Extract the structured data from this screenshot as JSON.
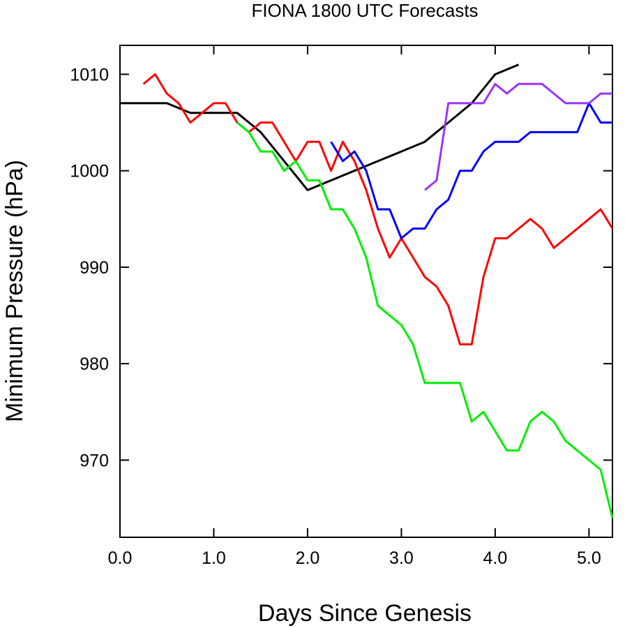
{
  "chart_data": {
    "type": "line",
    "title": "FIONA 1800 UTC Forecasts",
    "xlabel": "Days Since Genesis",
    "ylabel": "Minimum Pressure (hPa)",
    "xlim": [
      0,
      5.25
    ],
    "ylim": [
      962,
      1013
    ],
    "grid": false,
    "legend": "none",
    "x_ticks": [
      {
        "value": 0,
        "label": "0.0"
      },
      {
        "value": 1,
        "label": "1.0"
      },
      {
        "value": 2,
        "label": "2.0"
      },
      {
        "value": 3,
        "label": "3.0"
      },
      {
        "value": 4,
        "label": "4.0"
      },
      {
        "value": 5,
        "label": "5.0"
      }
    ],
    "y_ticks": [
      {
        "value": 970,
        "label": "970"
      },
      {
        "value": 980,
        "label": "980"
      },
      {
        "value": 990,
        "label": "990"
      },
      {
        "value": 1000,
        "label": "1000"
      },
      {
        "value": 1010,
        "label": "1010"
      }
    ],
    "series": [
      {
        "color": "#000000",
        "x": [
          0,
          0.5,
          0.75,
          1.0,
          1.25,
          1.5,
          2.0,
          2.25,
          2.5,
          2.75,
          3.0,
          3.25,
          3.5,
          3.75,
          4.0,
          4.25
        ],
        "y": [
          1007,
          1007,
          1006,
          1006,
          1006,
          1004,
          998,
          999,
          1000,
          1001,
          1002,
          1003,
          1005,
          1007,
          1010,
          1011
        ]
      },
      {
        "color": "#ff0000",
        "x": [
          0.25,
          0.375,
          0.5,
          0.625,
          0.75,
          0.875,
          1.0,
          1.125,
          1.25,
          1.375,
          1.5,
          1.625,
          1.75,
          1.875,
          2.0,
          2.125,
          2.25,
          2.375,
          2.5,
          2.625,
          2.75,
          2.875,
          3.0,
          3.125,
          3.25,
          3.375,
          3.5,
          3.625,
          3.75,
          3.875,
          4.0,
          4.125,
          4.25,
          4.375,
          4.5,
          4.625,
          4.75,
          4.875,
          5.0,
          5.125,
          5.25
        ],
        "y": [
          1009,
          1010,
          1008,
          1007,
          1005,
          1006,
          1007,
          1007,
          1005,
          1004,
          1005,
          1005,
          1003,
          1001,
          1003,
          1003,
          1000,
          1003,
          1001,
          998,
          994,
          991,
          993,
          991,
          989,
          988,
          986,
          982,
          982,
          989,
          993,
          993,
          994,
          995,
          994,
          992,
          993,
          994,
          995,
          996,
          994
        ]
      },
      {
        "color": "#00ee00",
        "x": [
          1.25,
          1.375,
          1.5,
          1.625,
          1.75,
          1.875,
          2.0,
          2.125,
          2.25,
          2.375,
          2.5,
          2.625,
          2.75,
          2.875,
          3.0,
          3.125,
          3.25,
          3.375,
          3.5,
          3.625,
          3.75,
          3.875,
          4.0,
          4.125,
          4.25,
          4.375,
          4.5,
          4.625,
          4.75,
          4.875,
          5.0,
          5.125,
          5.25
        ],
        "y": [
          1005,
          1004,
          1002,
          1002,
          1000,
          1001,
          999,
          999,
          996,
          996,
          994,
          991,
          986,
          985,
          984,
          982,
          978,
          978,
          978,
          978,
          974,
          975,
          973,
          971,
          971,
          974,
          975,
          974,
          972,
          971,
          970,
          969,
          964
        ]
      },
      {
        "color": "#0000ff",
        "x": [
          2.25,
          2.375,
          2.5,
          2.625,
          2.75,
          2.875,
          3.0,
          3.125,
          3.25,
          3.375,
          3.5,
          3.625,
          3.75,
          3.875,
          4.0,
          4.125,
          4.25,
          4.375,
          4.5,
          4.625,
          4.75,
          4.875,
          5.0,
          5.125,
          5.25
        ],
        "y": [
          1003,
          1001,
          1002,
          1000,
          996,
          996,
          993,
          994,
          994,
          996,
          997,
          1000,
          1000,
          1002,
          1003,
          1003,
          1003,
          1004,
          1004,
          1004,
          1004,
          1004,
          1007,
          1005,
          1005
        ]
      },
      {
        "color": "#9933ff",
        "x": [
          3.25,
          3.375,
          3.5,
          3.625,
          3.75,
          3.875,
          4.0,
          4.125,
          4.25,
          4.375,
          4.5,
          4.625,
          4.75,
          4.875,
          5.0,
          5.125,
          5.25
        ],
        "y": [
          998,
          999,
          1007,
          1007,
          1007,
          1007,
          1009,
          1008,
          1009,
          1009,
          1009,
          1008,
          1007,
          1007,
          1007,
          1008,
          1008
        ]
      }
    ]
  }
}
